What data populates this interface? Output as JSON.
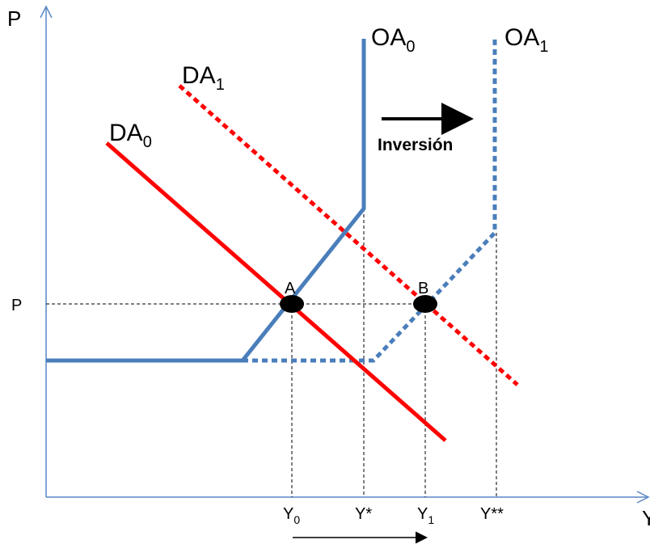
{
  "axes": {
    "y_title": "P",
    "x_title": "Y",
    "y_tick": "P",
    "x_ticks": [
      "Y",
      "Y*",
      "Y",
      "Y**"
    ],
    "x_tick_subs": [
      "0",
      "",
      "1",
      ""
    ]
  },
  "curves": {
    "oa0": {
      "base": "OA",
      "sub": "0"
    },
    "oa1": {
      "base": "OA",
      "sub": "1"
    },
    "da0": {
      "base": "DA",
      "sub": "0"
    },
    "da1": {
      "base": "DA",
      "sub": "1"
    }
  },
  "points": {
    "a": "A",
    "b": "B"
  },
  "annotation": "Inversión",
  "colors": {
    "axis": "#5b86c5",
    "supply": "#4a7ebb",
    "demand": "#ff0000",
    "guide": "#000000"
  }
}
